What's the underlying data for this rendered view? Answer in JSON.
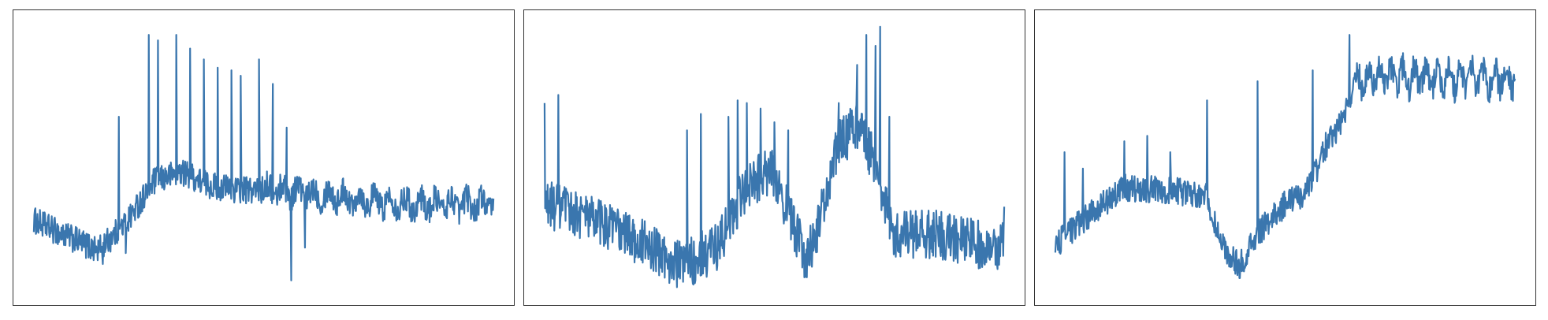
{
  "style": {
    "line_color": "#3a76ae",
    "frame_color": "#333333",
    "background": "#ffffff"
  },
  "chart_data": [
    {
      "type": "line",
      "title": "",
      "xlabel": "",
      "ylabel": "",
      "axes_visible": false,
      "grid": false,
      "legend": "none",
      "ylim": [
        0,
        1
      ],
      "series": [
        {
          "color": "#3a76ae",
          "anchors": [
            [
              0,
              0.27
            ],
            [
              0.06,
              0.22
            ],
            [
              0.14,
              0.16
            ],
            [
              0.2,
              0.26
            ],
            [
              0.26,
              0.41
            ],
            [
              0.32,
              0.45
            ],
            [
              0.38,
              0.4
            ],
            [
              0.45,
              0.38
            ],
            [
              0.55,
              0.38
            ],
            [
              0.65,
              0.36
            ],
            [
              0.75,
              0.34
            ],
            [
              0.85,
              0.33
            ],
            [
              1.0,
              0.33
            ]
          ],
          "noise": 0.05,
          "oscillation": {
            "amplitude": 0.025,
            "cycles": 30,
            "from_x": 0.5
          },
          "spikes": [
            [
              0.15,
              0.71
            ],
            [
              0.185,
              0.65
            ],
            [
              0.25,
              0.95
            ],
            [
              0.27,
              0.93
            ],
            [
              0.31,
              0.95
            ],
            [
              0.34,
              0.9
            ],
            [
              0.37,
              0.86
            ],
            [
              0.4,
              0.83
            ],
            [
              0.43,
              0.82
            ],
            [
              0.45,
              0.8
            ],
            [
              0.49,
              0.86
            ],
            [
              0.52,
              0.77
            ],
            [
              0.55,
              0.61
            ],
            [
              0.59,
              0.61
            ],
            [
              0.15,
              0.11
            ],
            [
              0.2,
              0.15
            ],
            [
              0.56,
              0.05
            ],
            [
              0.59,
              0.17
            ]
          ]
        }
      ]
    },
    {
      "type": "line",
      "title": "",
      "xlabel": "",
      "ylabel": "",
      "axes_visible": false,
      "grid": false,
      "legend": "none",
      "ylim": [
        0,
        1
      ],
      "series": [
        {
          "color": "#3a76ae",
          "anchors": [
            [
              0,
              0.33
            ],
            [
              0.1,
              0.28
            ],
            [
              0.2,
              0.2
            ],
            [
              0.3,
              0.1
            ],
            [
              0.38,
              0.18
            ],
            [
              0.44,
              0.4
            ],
            [
              0.5,
              0.45
            ],
            [
              0.53,
              0.3
            ],
            [
              0.57,
              0.12
            ],
            [
              0.6,
              0.28
            ],
            [
              0.64,
              0.55
            ],
            [
              0.68,
              0.62
            ],
            [
              0.72,
              0.48
            ],
            [
              0.76,
              0.22
            ],
            [
              0.85,
              0.22
            ],
            [
              0.95,
              0.18
            ],
            [
              1.0,
              0.18
            ]
          ],
          "noise": 0.09,
          "spikes": [
            [
              0.0,
              0.7
            ],
            [
              0.03,
              0.73
            ],
            [
              0.31,
              0.6
            ],
            [
              0.34,
              0.66
            ],
            [
              0.4,
              0.65
            ],
            [
              0.42,
              0.71
            ],
            [
              0.44,
              0.7
            ],
            [
              0.47,
              0.68
            ],
            [
              0.5,
              0.63
            ],
            [
              0.53,
              0.6
            ],
            [
              0.64,
              0.7
            ],
            [
              0.68,
              0.84
            ],
            [
              0.7,
              0.95
            ],
            [
              0.72,
              0.91
            ],
            [
              0.73,
              0.98
            ],
            [
              0.75,
              0.65
            ],
            [
              1.0,
              0.32
            ]
          ]
        }
      ]
    },
    {
      "type": "line",
      "title": "",
      "xlabel": "",
      "ylabel": "",
      "axes_visible": false,
      "grid": false,
      "legend": "none",
      "ylim": [
        0,
        1
      ],
      "series": [
        {
          "color": "#3a76ae",
          "anchors": [
            [
              0,
              0.18
            ],
            [
              0.08,
              0.3
            ],
            [
              0.15,
              0.39
            ],
            [
              0.25,
              0.38
            ],
            [
              0.33,
              0.36
            ],
            [
              0.36,
              0.18
            ],
            [
              0.4,
              0.1
            ],
            [
              0.44,
              0.22
            ],
            [
              0.5,
              0.33
            ],
            [
              0.55,
              0.38
            ],
            [
              0.59,
              0.55
            ],
            [
              0.63,
              0.65
            ],
            [
              0.65,
              0.78
            ],
            [
              0.7,
              0.8
            ],
            [
              0.8,
              0.79
            ],
            [
              0.9,
              0.79
            ],
            [
              1.0,
              0.79
            ]
          ],
          "noise": 0.05,
          "oscillation": {
            "amplitude": 0.04,
            "cycles": 40,
            "from_x": 0.64
          },
          "spikes": [
            [
              0.02,
              0.52
            ],
            [
              0.06,
              0.46
            ],
            [
              0.15,
              0.56
            ],
            [
              0.2,
              0.58
            ],
            [
              0.25,
              0.52
            ],
            [
              0.33,
              0.71
            ],
            [
              0.44,
              0.78
            ],
            [
              0.56,
              0.82
            ],
            [
              0.64,
              0.95
            ]
          ]
        }
      ]
    }
  ]
}
